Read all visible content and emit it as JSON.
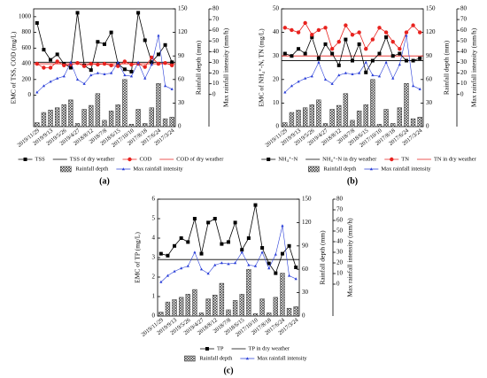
{
  "chart_data": [
    {
      "type": "combo",
      "label": "(a)",
      "categories": [
        "2019/11/29",
        null,
        "2019/9/13",
        null,
        "2019/5/26",
        null,
        "2019/4/27",
        null,
        "2018/8/12",
        null,
        "2018/7/8",
        null,
        "2018/6/15",
        null,
        "2017/10/10",
        null,
        "2017/8/18",
        null,
        "2017/6/24",
        null,
        "2017/3/24"
      ],
      "ylabel": "EMC of TSS, COD (mg/L)",
      "y2label": "Rainfall depth (mm)",
      "y3label": "Max rainfall intensity (mm/h)",
      "ylim": [
        -400,
        1100
      ],
      "yticks": [
        0,
        200,
        400,
        600,
        800,
        1000
      ],
      "y2lim": [
        0,
        150
      ],
      "y2ticks": [
        0,
        30,
        60,
        90,
        120,
        150
      ],
      "y3lim": [
        -30,
        80
      ],
      "y3ticks": [
        0,
        10,
        20,
        30,
        40,
        50,
        60,
        70,
        80
      ],
      "series": [
        {
          "name": "TSS",
          "color": "#000000",
          "marker": "square",
          "axis": "y",
          "values": [
            920,
            580,
            450,
            520,
            400,
            350,
            1050,
            380,
            320,
            680,
            650,
            800,
            400,
            330,
            300,
            1050,
            700,
            420,
            520,
            640,
            420
          ]
        },
        {
          "name": "TSS of dry weather",
          "color": "#000000",
          "value": 420
        },
        {
          "name": "COD",
          "color": "#e8231f",
          "marker": "circle",
          "axis": "y",
          "values": [
            400,
            350,
            350,
            430,
            380,
            390,
            410,
            370,
            400,
            390,
            400,
            380,
            370,
            430,
            390,
            400,
            360,
            480,
            400,
            410,
            380
          ]
        },
        {
          "name": "COD of dry weather",
          "color": "#e8231f",
          "value": 400
        },
        {
          "name": "Rainfall depth",
          "color": "#333333",
          "axis": "y2",
          "bar": true,
          "values": [
            5,
            18,
            21,
            24,
            28,
            34,
            4,
            22,
            27,
            42,
            8,
            20,
            28,
            60,
            3,
            22,
            4,
            24,
            55,
            10,
            12
          ]
        },
        {
          "name": "Max rainfall intensity",
          "color": "#2a3fd8",
          "marker": "triangle",
          "axis": "y3",
          "values": [
            2,
            8,
            12,
            15,
            17,
            30,
            14,
            10,
            18,
            20,
            19,
            20,
            30,
            18,
            17,
            30,
            15,
            28,
            55,
            8,
            5
          ]
        }
      ]
    },
    {
      "type": "combo",
      "label": "(b)",
      "categories": [
        "2019/11/29",
        null,
        "2019/9/13",
        null,
        "2019/5/26",
        null,
        "2019/4/27",
        null,
        "2018/8/12",
        null,
        "2018/7/8",
        null,
        "2018/6/15",
        null,
        "2017/10/10",
        null,
        "2017/8/18",
        null,
        "2017/6/24",
        null,
        "2017/3/24"
      ],
      "ylabel": "EMC of NH₄⁺-N, TN (mg/L)",
      "y2label": "Rainfall depth (mm)",
      "y3label": "Max rainfall intensity (mm/h)",
      "ylim": [
        0,
        50
      ],
      "yticks": [
        0,
        10,
        20,
        30,
        40,
        50
      ],
      "y2lim": [
        0,
        150
      ],
      "y2ticks": [
        0,
        30,
        60,
        90,
        120,
        150
      ],
      "y3lim": [
        -30,
        80
      ],
      "y3ticks": [
        0,
        10,
        20,
        30,
        40,
        50,
        60,
        70,
        80
      ],
      "series": [
        {
          "name": "NH₄⁺-N",
          "color": "#000000",
          "marker": "square",
          "axis": "y",
          "values": [
            31,
            30,
            33,
            31,
            38,
            29,
            35,
            31,
            26,
            37,
            28,
            35,
            23,
            28,
            31,
            38,
            30,
            31,
            28,
            28,
            29
          ]
        },
        {
          "name": "NH₄⁺-N in dry weather",
          "color": "#000000",
          "value": 28
        },
        {
          "name": "TN",
          "color": "#e8231f",
          "marker": "circle",
          "axis": "y",
          "values": [
            42,
            41,
            40,
            44,
            39,
            41,
            42,
            33,
            36,
            43,
            39,
            40,
            33,
            37,
            42,
            40,
            36,
            33,
            40,
            43,
            40
          ]
        },
        {
          "name": "TN in dry weather",
          "color": "#e8231f",
          "value": 30
        },
        {
          "name": "Rainfall depth",
          "color": "#333333",
          "axis": "y2",
          "bar": true,
          "values": [
            5,
            18,
            21,
            24,
            28,
            34,
            4,
            22,
            27,
            42,
            8,
            20,
            28,
            60,
            3,
            22,
            4,
            24,
            55,
            10,
            12
          ]
        },
        {
          "name": "Max rainfall intensity",
          "color": "#2a3fd8",
          "marker": "triangle",
          "axis": "y3",
          "values": [
            2,
            8,
            12,
            15,
            17,
            30,
            14,
            10,
            18,
            20,
            19,
            20,
            30,
            18,
            17,
            30,
            15,
            28,
            55,
            8,
            5
          ]
        }
      ]
    },
    {
      "type": "combo",
      "label": "(c)",
      "categories": [
        "2019/11/29",
        null,
        "2019/9/13",
        null,
        "2019/5/26",
        null,
        "2019/4/27",
        null,
        "2018/8/12",
        null,
        "2018/7/8",
        null,
        "2018/6/15",
        null,
        "2017/10/10",
        null,
        "2017/8/18",
        null,
        "2017/6/24",
        null,
        "2017/3/24"
      ],
      "ylabel": "EMC of TP (mg/L)",
      "y2label": "Rainfall depth (mm)",
      "y3label": "Max rainfall intensity (mm/h)",
      "ylim": [
        0,
        6
      ],
      "yticks": [
        0,
        1,
        2,
        3,
        4,
        5,
        6
      ],
      "y2lim": [
        0,
        150
      ],
      "y2ticks": [
        0,
        30,
        60,
        90,
        120,
        150
      ],
      "y3lim": [
        -30,
        80
      ],
      "y3ticks": [
        0,
        10,
        20,
        30,
        40,
        50,
        60,
        70,
        80
      ],
      "series": [
        {
          "name": "TP",
          "color": "#000000",
          "marker": "square",
          "axis": "y",
          "values": [
            3.2,
            3.1,
            3.6,
            4.0,
            3.8,
            5.0,
            3.2,
            4.8,
            5.0,
            3.7,
            3.8,
            4.8,
            3.4,
            4.0,
            5.7,
            3.5,
            2.7,
            2.2,
            3.2,
            3.6,
            2.5
          ]
        },
        {
          "name": "TP in dry weather",
          "color": "#000000",
          "value": 2.9
        },
        {
          "name": "Rainfall depth",
          "color": "#333333",
          "axis": "y2",
          "bar": true,
          "values": [
            5,
            18,
            21,
            24,
            28,
            34,
            4,
            22,
            27,
            42,
            8,
            20,
            28,
            60,
            3,
            22,
            4,
            24,
            55,
            10,
            12
          ]
        },
        {
          "name": "Max rainfall intensity",
          "color": "#2a3fd8",
          "marker": "triangle",
          "axis": "y3",
          "values": [
            2,
            8,
            12,
            15,
            17,
            30,
            14,
            10,
            18,
            20,
            19,
            20,
            30,
            18,
            17,
            30,
            15,
            28,
            55,
            8,
            5
          ]
        }
      ]
    }
  ]
}
